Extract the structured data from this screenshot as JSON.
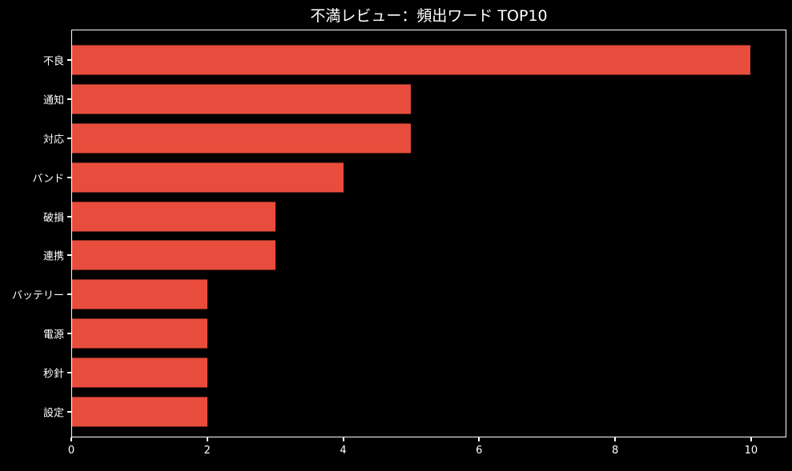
{
  "chart_data": {
    "type": "bar",
    "orientation": "horizontal",
    "title": "不満レビュー：頻出ワード TOP10",
    "categories": [
      "不良",
      "通知",
      "対応",
      "バンド",
      "破損",
      "連携",
      "バッテリー",
      "電源",
      "秒針",
      "設定"
    ],
    "values": [
      10,
      5,
      5,
      4,
      3,
      3,
      2,
      2,
      2,
      2
    ],
    "xlabel": "",
    "ylabel": "",
    "x_ticks": [
      0,
      2,
      4,
      6,
      8,
      10
    ],
    "xlim": [
      0,
      10.52
    ],
    "grid": false,
    "colors": {
      "background": "#000000",
      "bar": "#e74c3c",
      "text": "#ffffff",
      "spine": "#ffffff"
    }
  }
}
